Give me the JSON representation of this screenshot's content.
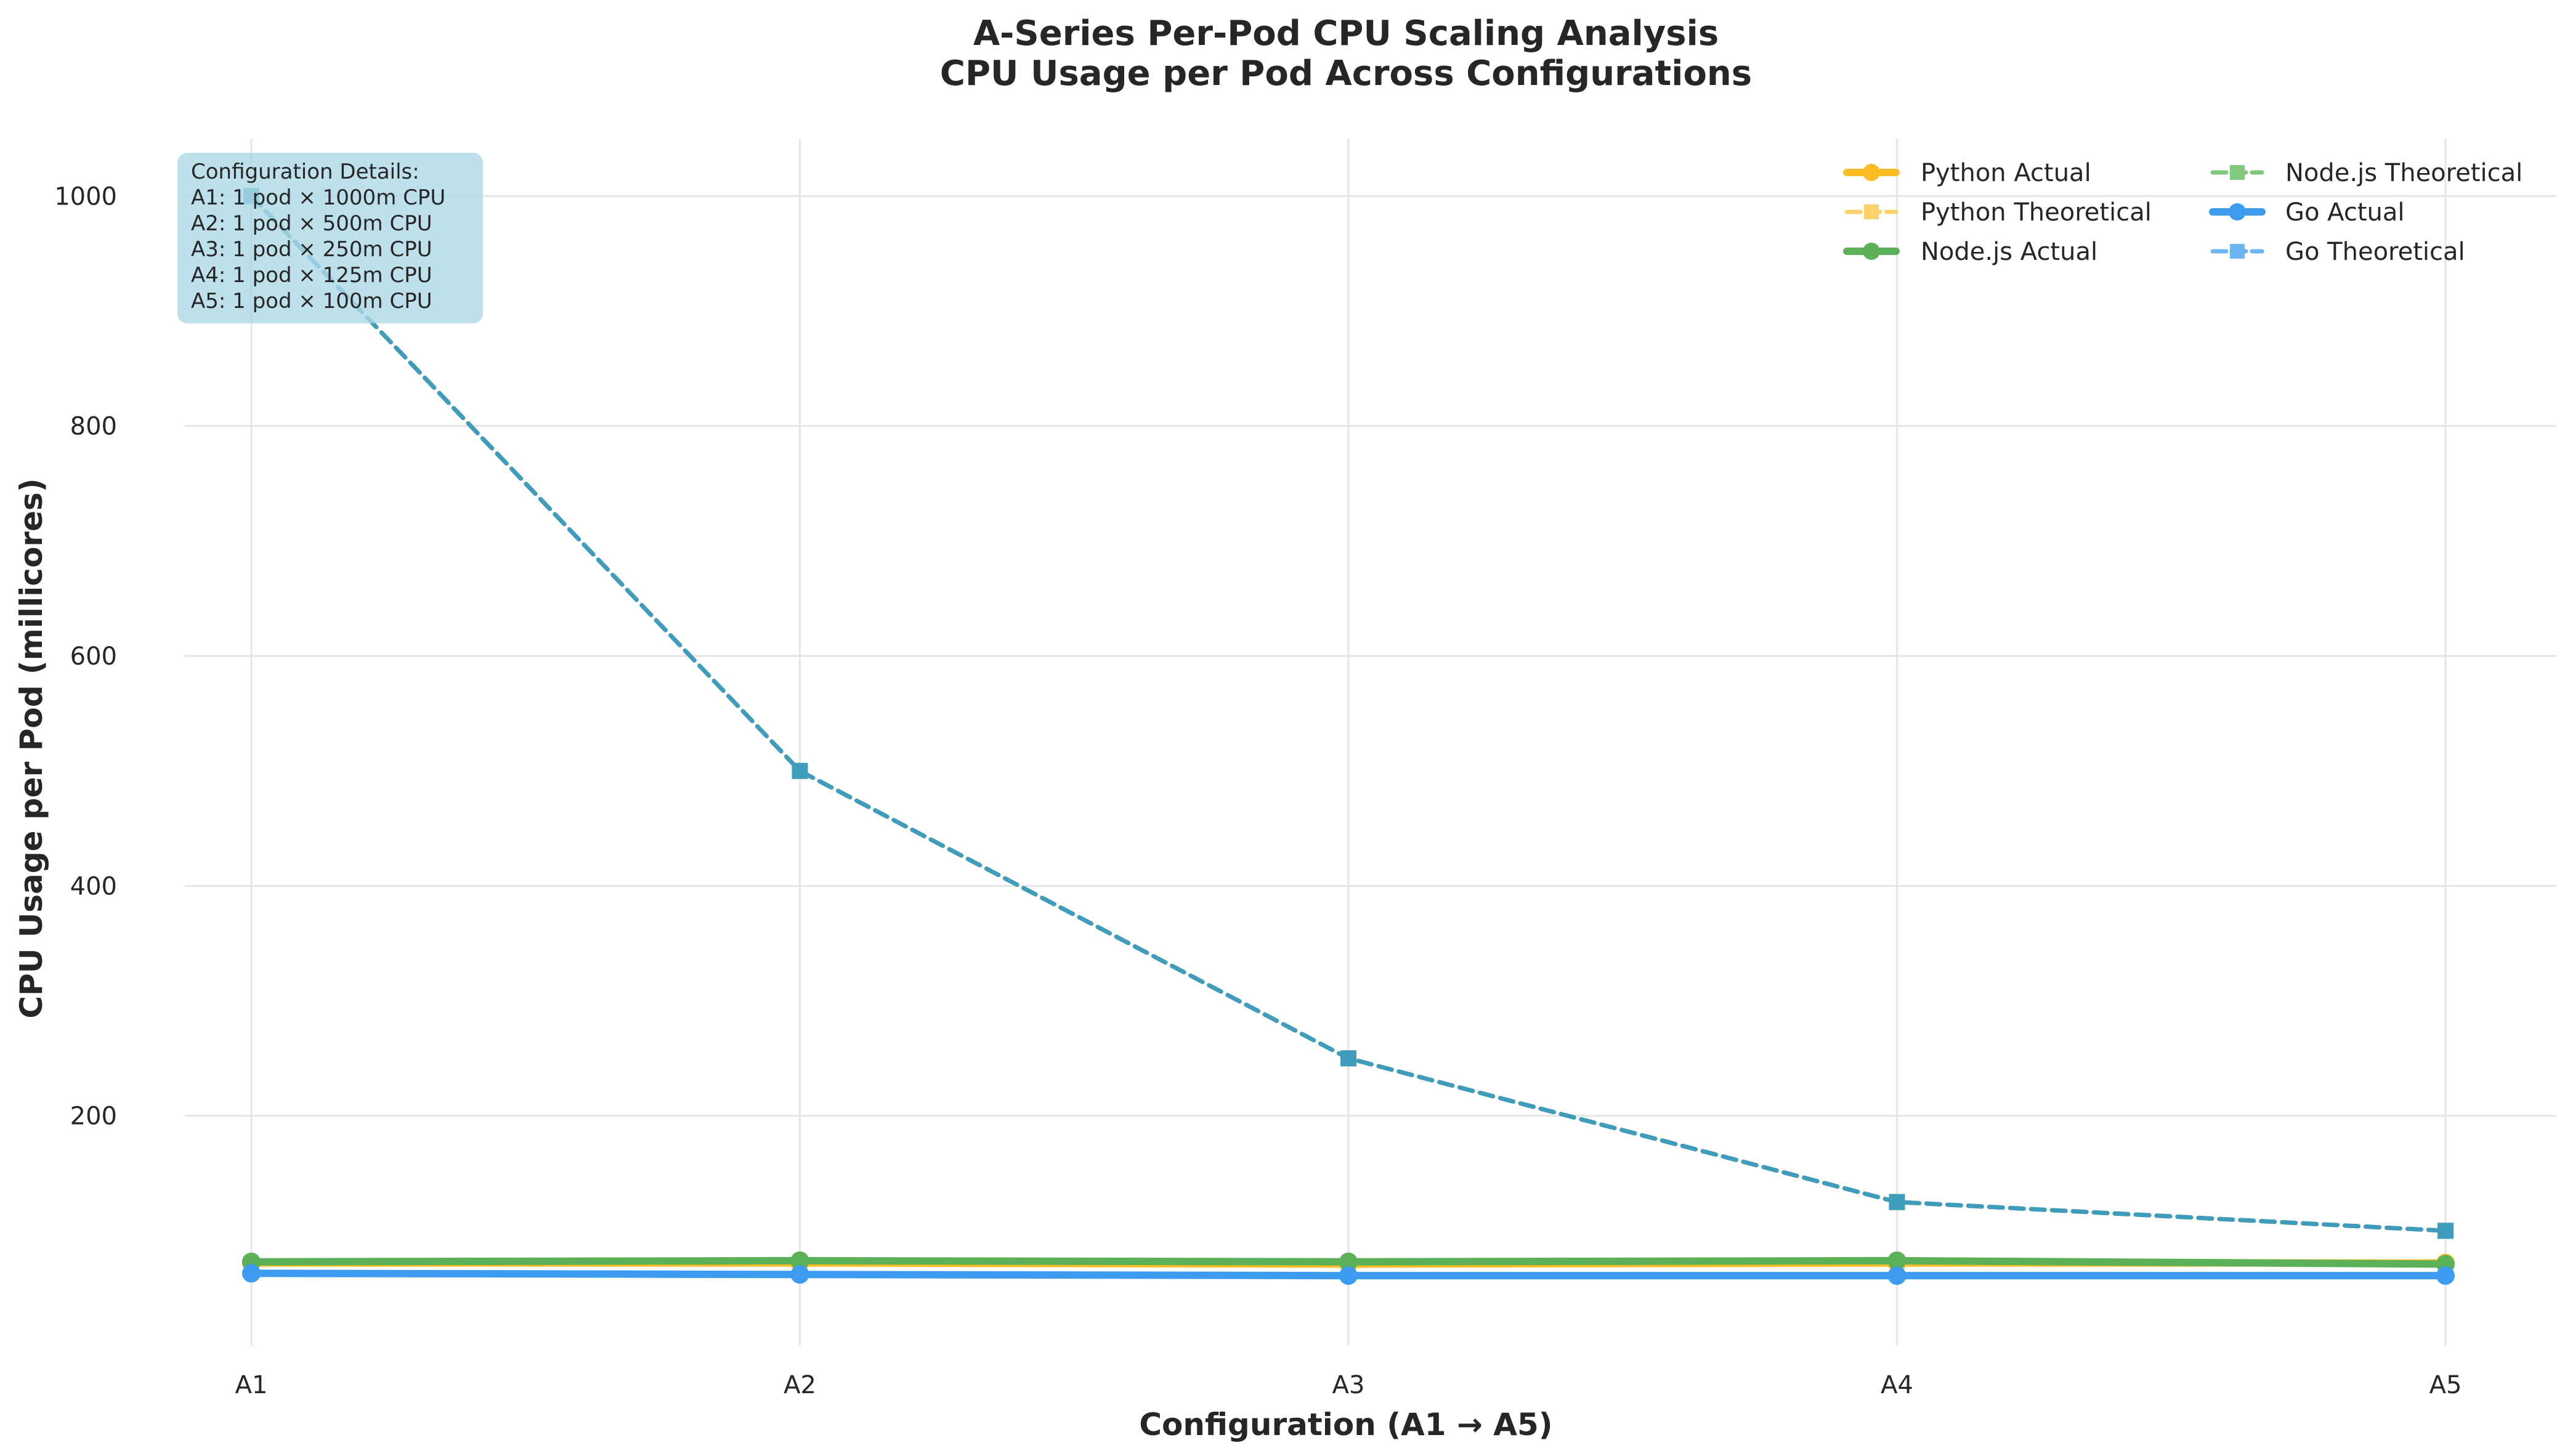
{
  "chart_data": {
    "type": "line",
    "title": "A-Series Per-Pod CPU Scaling Analysis",
    "subtitle": "CPU Usage per Pod Across Configurations",
    "xlabel": "Configuration (A1 → A5)",
    "ylabel": "CPU Usage per Pod (millicores)",
    "categories": [
      "A1",
      "A2",
      "A3",
      "A4",
      "A5"
    ],
    "ylim": [
      0,
      1050
    ],
    "yticks": [
      200,
      400,
      600,
      800,
      1000
    ],
    "grid": true,
    "legend_position": "top-right",
    "series": [
      {
        "name": "Python Actual",
        "values": [
          72,
          72,
          71,
          72,
          72
        ],
        "color": "#fbbd23",
        "style": "solid",
        "marker": "circle",
        "width": 12
      },
      {
        "name": "Python Theoretical",
        "values": [
          1000,
          500,
          250,
          125,
          100
        ],
        "color": "#fdd26d",
        "style": "dashed",
        "marker": "square",
        "width": 7
      },
      {
        "name": "Node.js Actual",
        "values": [
          73,
          74,
          73,
          74,
          71
        ],
        "color": "#5cb058",
        "style": "solid",
        "marker": "circle",
        "width": 12
      },
      {
        "name": "Node.js Theoretical",
        "values": [
          1000,
          500,
          250,
          125,
          100
        ],
        "color": "#4e9fa6",
        "style": "dashed",
        "marker": "square",
        "width": 7
      },
      {
        "name": "Go Actual",
        "values": [
          63,
          62,
          61,
          61,
          61
        ],
        "color": "#3d9cf0",
        "style": "solid",
        "marker": "circle",
        "width": 12
      },
      {
        "name": "Go Theoretical",
        "values": [
          1000,
          500,
          250,
          125,
          100
        ],
        "color": "#3f9dbb",
        "style": "dashed",
        "marker": "square",
        "width": 7
      }
    ],
    "legend_order": [
      "Python Actual",
      "Python Theoretical",
      "Node.js Actual",
      "Node.js Theoretical",
      "Go Actual",
      "Go Theoretical"
    ],
    "legend_colors": [
      "#fbbd23",
      "#fdd26d",
      "#5cb058",
      "#80c97c",
      "#3d9cf0",
      "#6ab7f2"
    ],
    "annotation": {
      "lines": [
        "Configuration Details:",
        "A1: 1 pod × 1000m CPU",
        "A2: 1 pod × 500m CPU",
        "A3: 1 pod × 250m CPU",
        "A4: 1 pod × 125m CPU",
        "A5: 1 pod × 100m CPU"
      ],
      "background": "#add8e6"
    }
  }
}
